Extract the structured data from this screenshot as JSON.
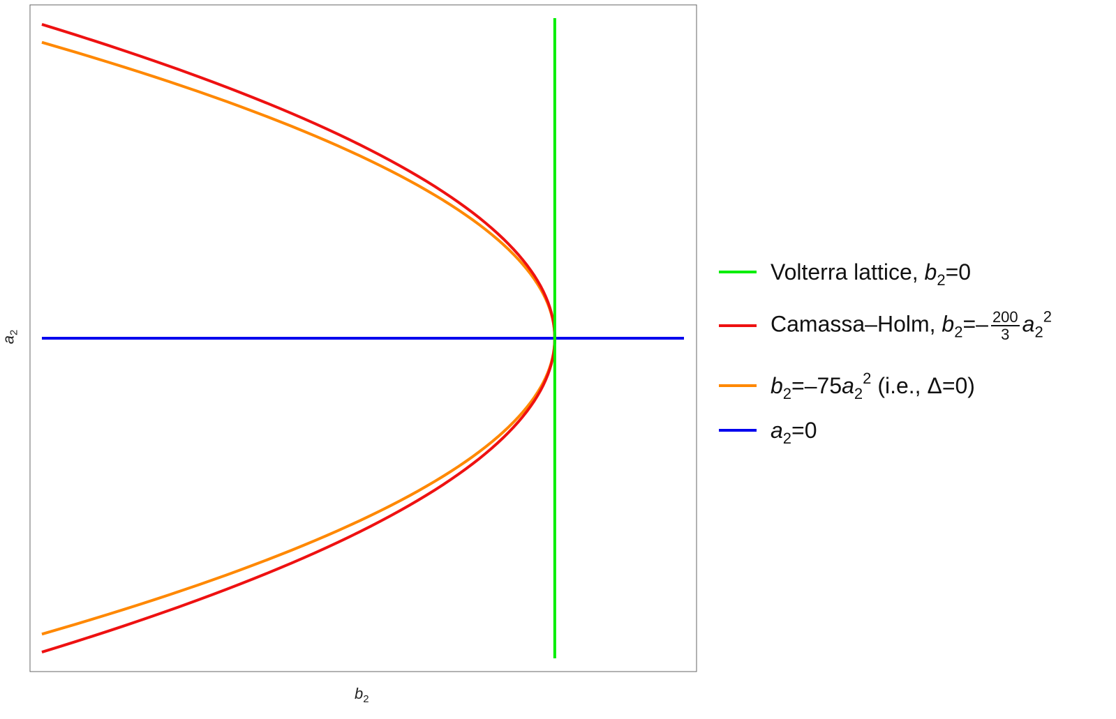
{
  "chart_data": {
    "type": "line",
    "title": "",
    "xlabel": {
      "base": "b",
      "sub": "2"
    },
    "ylabel": {
      "base": "a",
      "sub": "2"
    },
    "xlim": [
      -16.67,
      4.2
    ],
    "ylim": [
      -0.53,
      0.53
    ],
    "grid": false,
    "ticks": false,
    "legend_placement": "right",
    "series": [
      {
        "key": "volterra",
        "kind": "vertical",
        "b2": 0,
        "a2_range": [
          -0.51,
          0.51
        ],
        "color": "#00ee00",
        "legend": [
          {
            "t": "Volterra lattice, "
          },
          {
            "t": "b",
            "i": true
          },
          {
            "t": "2",
            "sub": true
          },
          {
            "t": "=0"
          }
        ]
      },
      {
        "key": "camassa-holm",
        "kind": "parabola",
        "coef": -66.6667,
        "color": "#ee1111",
        "legend": [
          {
            "t": "Camassa–Holm, "
          },
          {
            "t": "b",
            "i": true
          },
          {
            "t": "2",
            "sub": true
          },
          {
            "t": "=–"
          },
          {
            "frac": [
              "200",
              "3"
            ]
          },
          {
            "t": "a",
            "i": true
          },
          {
            "t": "2",
            "sub": true
          },
          {
            "t": "2",
            "sup": true
          }
        ]
      },
      {
        "key": "delta-zero",
        "kind": "parabola",
        "coef": -75,
        "color": "#ff8800",
        "legend": [
          {
            "t": "b",
            "i": true
          },
          {
            "t": "2",
            "sub": true
          },
          {
            "t": "=–75"
          },
          {
            "t": "a",
            "i": true
          },
          {
            "t": "2",
            "sub": true
          },
          {
            "t": "2",
            "sup": true
          },
          {
            "t": " (i.e., Δ=0)"
          }
        ]
      },
      {
        "key": "a2-zero",
        "kind": "horizontal",
        "a2": 0,
        "b2_range": [
          -16.67,
          4.2
        ],
        "color": "#0000ee",
        "legend": [
          {
            "t": "a",
            "i": true
          },
          {
            "t": "2",
            "sub": true
          },
          {
            "t": "=0"
          }
        ]
      }
    ]
  }
}
